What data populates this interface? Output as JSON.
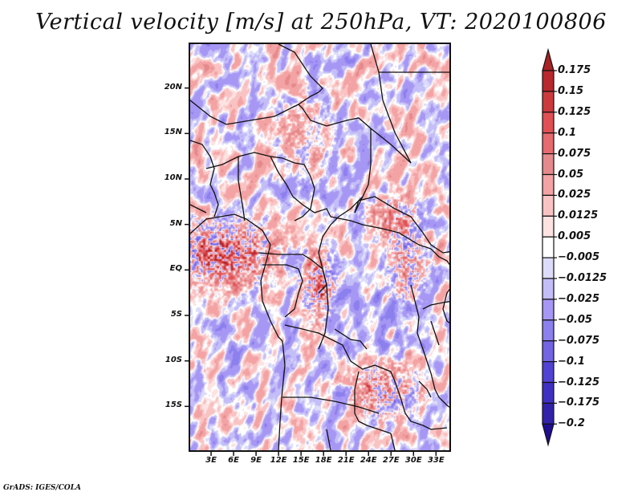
{
  "title": "Vertical velocity [m/s] at 250hPa, VT: 2020100806",
  "footer": "GrADS: IGES/COLA",
  "chart_data": {
    "type": "heatmap",
    "title": "Vertical velocity [m/s] at 250hPa, VT: 2020100806",
    "variable": "Vertical velocity",
    "units": "m/s",
    "level": "250hPa",
    "valid_time": "2020100806",
    "xlabel": "",
    "ylabel": "",
    "x_range": [
      0,
      35
    ],
    "y_range": [
      -20,
      25
    ],
    "x_ticks": [
      {
        "value": 3,
        "label": "3E"
      },
      {
        "value": 6,
        "label": "6E"
      },
      {
        "value": 9,
        "label": "9E"
      },
      {
        "value": 12,
        "label": "12E"
      },
      {
        "value": 15,
        "label": "15E"
      },
      {
        "value": 18,
        "label": "18E"
      },
      {
        "value": 21,
        "label": "21E"
      },
      {
        "value": 24,
        "label": "24E"
      },
      {
        "value": 27,
        "label": "27E"
      },
      {
        "value": 30,
        "label": "30E"
      },
      {
        "value": 33,
        "label": "33E"
      }
    ],
    "y_ticks": [
      {
        "value": 20,
        "label": "20N"
      },
      {
        "value": 15,
        "label": "15N"
      },
      {
        "value": 10,
        "label": "10N"
      },
      {
        "value": 5,
        "label": "5N"
      },
      {
        "value": 0,
        "label": "EQ"
      },
      {
        "value": -5,
        "label": "5S"
      },
      {
        "value": -10,
        "label": "10S"
      },
      {
        "value": -15,
        "label": "15S"
      }
    ],
    "colorbar": {
      "orientation": "vertical",
      "extend": "both",
      "labels": [
        "0.175",
        "0.15",
        "0.125",
        "0.1",
        "0.075",
        "0.05",
        "0.025",
        "0.0125",
        "0.005",
        "-0.005",
        "-0.0125",
        "-0.025",
        "-0.05",
        "-0.075",
        "-0.1",
        "-0.125",
        "-0.175",
        "-0.2"
      ],
      "levels": [
        0.175,
        0.15,
        0.125,
        0.1,
        0.075,
        0.05,
        0.025,
        0.0125,
        0.005,
        -0.005,
        -0.0125,
        -0.025,
        -0.05,
        -0.075,
        -0.1,
        -0.125,
        -0.175,
        -0.2
      ],
      "colors": [
        "#b2262a",
        "#c03236",
        "#d84448",
        "#e6585c",
        "#e87478",
        "#e8999b",
        "#f7aaab",
        "#fbc8c8",
        "#fde3e3",
        "#ffffff",
        "#dcdcfa",
        "#c2bcf8",
        "#a89cf6",
        "#8a7ef0",
        "#6e60e0",
        "#4f40d4",
        "#3c2cc0",
        "#2f20a8",
        "#22109a"
      ],
      "over_color": "#a82226",
      "under_color": "#200e90"
    },
    "grid": false,
    "features": [
      "country borders",
      "coastlines"
    ],
    "notable_regions": [
      {
        "description": "strong upward motion cluster",
        "lon_range": [
          0,
          9
        ],
        "lat_range": [
          0,
          5
        ]
      },
      {
        "description": "upward motion band",
        "lon_range": [
          17,
          19
        ],
        "lat_range": [
          -2,
          3
        ]
      },
      {
        "description": "upward motion cluster",
        "lon_range": [
          23,
          27
        ],
        "lat_range": [
          -16,
          -13
        ]
      }
    ]
  }
}
